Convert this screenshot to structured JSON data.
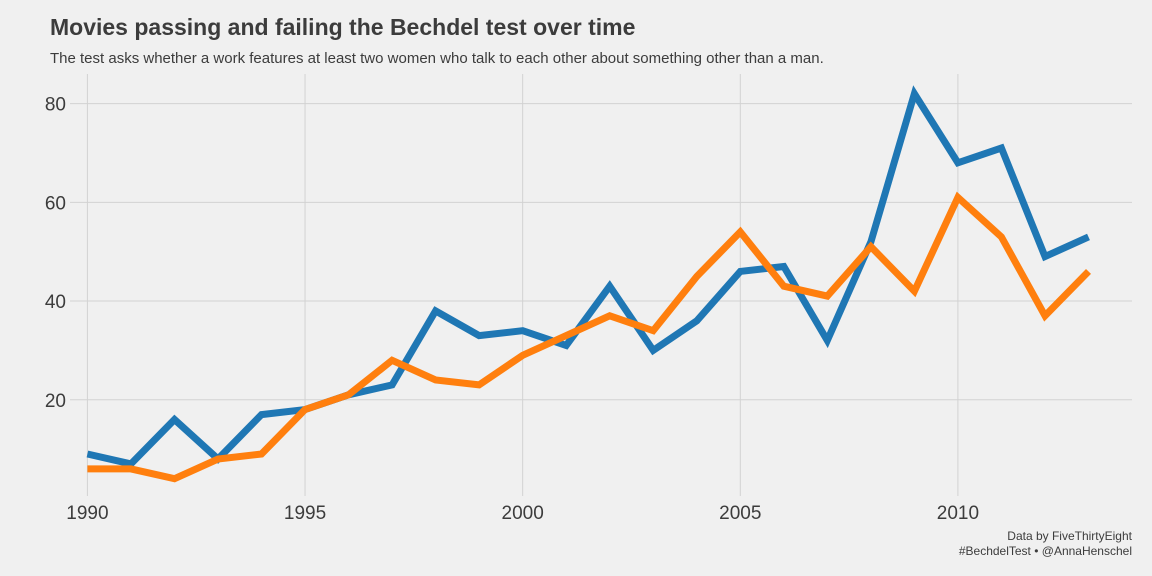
{
  "chart_data": {
    "type": "line",
    "title": "Movies passing and failing the Bechdel test over time",
    "subtitle": "The test asks whether a work features at least two women who talk to each other about something other than a man.",
    "xlabel": "",
    "ylabel": "",
    "x": [
      1990,
      1991,
      1992,
      1993,
      1994,
      1995,
      1996,
      1997,
      1998,
      1999,
      2000,
      2001,
      2002,
      2003,
      2004,
      2005,
      2006,
      2007,
      2008,
      2009,
      2010,
      2011,
      2012,
      2013
    ],
    "series": [
      {
        "color": "#1f77b4",
        "values": [
          9,
          7,
          16,
          8,
          17,
          18,
          21,
          23,
          38,
          33,
          34,
          31,
          43,
          30,
          36,
          46,
          47,
          32,
          52,
          82,
          68,
          71,
          49,
          53
        ]
      },
      {
        "color": "#ff7f0e",
        "values": [
          6,
          6,
          4,
          8,
          9,
          18,
          21,
          28,
          24,
          23,
          29,
          33,
          37,
          34,
          45,
          54,
          43,
          41,
          51,
          42,
          61,
          53,
          37,
          46
        ]
      }
    ],
    "xticks": [
      1990,
      1995,
      2000,
      2005,
      2010
    ],
    "yticks": [
      20,
      40,
      60,
      80
    ],
    "xlim": [
      1989.6,
      2014.0
    ],
    "ylim": [
      0.5,
      86
    ],
    "grid": true,
    "legend": "none"
  },
  "caption": {
    "line1": "Data by FiveThirtyEight",
    "line2": "#BechdelTest • @AnnaHenschel"
  },
  "colors": {
    "background": "#f0f0f0",
    "grid": "#d2d2d2",
    "text": "#3c3c3c"
  }
}
